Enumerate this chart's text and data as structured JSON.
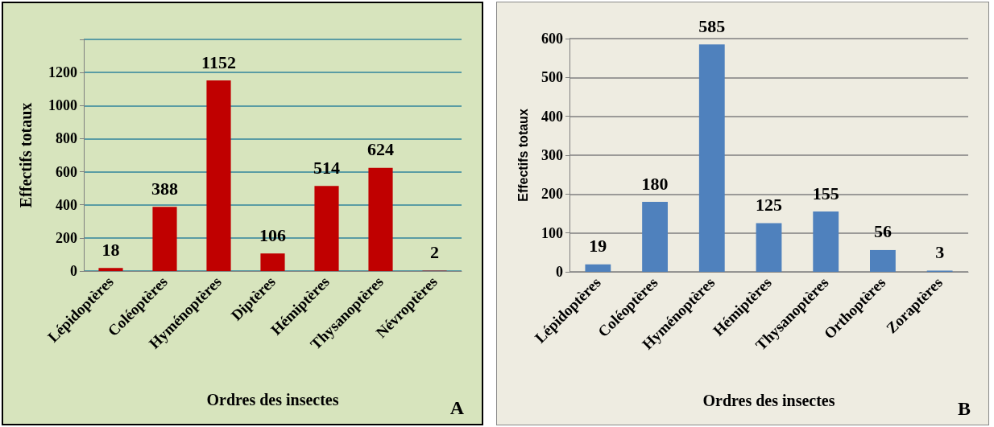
{
  "chart_data": [
    {
      "type": "bar",
      "categories": [
        "Lépidoptères",
        "Coléoptères",
        "Hyménoptères",
        "Diptères",
        "Hémiptères",
        "Thysanoptères",
        "Névroptères"
      ],
      "values": [
        18,
        388,
        1152,
        106,
        514,
        624,
        2
      ],
      "color": "#c00000",
      "ylim": [
        0,
        1400
      ],
      "yticks": [
        0,
        200,
        400,
        600,
        800,
        1000,
        1200,
        {
          "value": 1400,
          "label": null
        }
      ],
      "grid": "y",
      "data_labels": true,
      "xlabel": "Ordres des insectes",
      "ylabel": "Effectifs totaux",
      "annotations": [
        "A"
      ]
    },
    {
      "type": "bar",
      "categories": [
        "Lépidoptères",
        "Coléoptères",
        "Hyménoptères",
        "Hémiptères",
        "Thysanoptères",
        "Orthoptères",
        "Zoraptères"
      ],
      "values": [
        19,
        180,
        585,
        125,
        155,
        56,
        3
      ],
      "color": "#4f81bd",
      "ylim": [
        0,
        600
      ],
      "yticks": [
        0,
        100,
        200,
        300,
        400,
        500,
        600
      ],
      "grid": "y",
      "data_labels": true,
      "xlabel": "Ordres des insectes",
      "ylabel": "Effectifs totaux",
      "annotations": [
        "B"
      ]
    }
  ]
}
